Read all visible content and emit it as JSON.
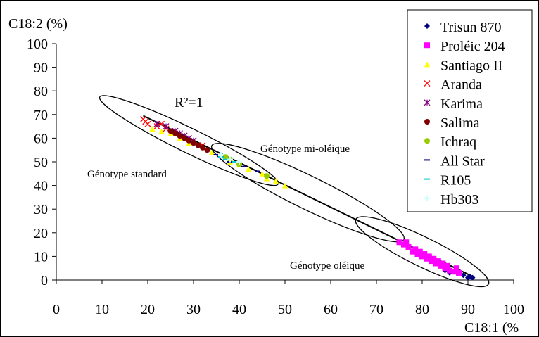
{
  "chart_data": {
    "type": "scatter",
    "title": "",
    "ylabel": "C18:2 (%)",
    "xlabel": "C18:1 (%",
    "xlim": [
      0,
      100
    ],
    "ylim": [
      0,
      100
    ],
    "x_ticks": [
      0,
      10,
      20,
      30,
      40,
      50,
      60,
      70,
      80,
      90,
      100
    ],
    "y_ticks": [
      0,
      10,
      20,
      30,
      40,
      50,
      60,
      70,
      80,
      90,
      100
    ],
    "grid": false,
    "legend_position": "top-right",
    "trendline": {
      "x": [
        19,
        91
      ],
      "y": [
        69.5,
        1.5
      ]
    },
    "annotations": [
      {
        "id": "r2",
        "text": "R²=1"
      },
      {
        "id": "standard",
        "text": "Génotype standard"
      },
      {
        "id": "mid",
        "text": "Génotype mi-oléique"
      },
      {
        "id": "oleic",
        "text": "Génotype oléique"
      }
    ],
    "series": [
      {
        "name": "Trisun 870",
        "marker": "diamond",
        "color": "#000080",
        "points": [
          [
            85,
            4
          ],
          [
            86,
            3
          ],
          [
            89,
            2
          ],
          [
            90,
            1
          ],
          [
            91,
            1
          ],
          [
            90.5,
            1.5
          ]
        ]
      },
      {
        "name": "Proléic 204",
        "marker": "square",
        "color": "#ff00ff",
        "points": [
          [
            75,
            16
          ],
          [
            76,
            15
          ],
          [
            77,
            14
          ],
          [
            78,
            12
          ],
          [
            79,
            11
          ],
          [
            80,
            10
          ],
          [
            81,
            9
          ],
          [
            82,
            8
          ],
          [
            83,
            7
          ],
          [
            84,
            6
          ],
          [
            85,
            5
          ],
          [
            86,
            4
          ],
          [
            87,
            3.5
          ],
          [
            88,
            3
          ],
          [
            79.5,
            12
          ],
          [
            80.5,
            11
          ],
          [
            82.5,
            9
          ],
          [
            84.5,
            7
          ],
          [
            76.5,
            16
          ],
          [
            78.5,
            13
          ],
          [
            81.5,
            10
          ],
          [
            83.5,
            8
          ],
          [
            85.5,
            6
          ],
          [
            87.5,
            5
          ]
        ]
      },
      {
        "name": "Santiago II",
        "marker": "triangle",
        "color": "#ffff00",
        "points": [
          [
            21,
            64
          ],
          [
            23,
            63
          ],
          [
            25,
            62
          ],
          [
            27,
            60
          ],
          [
            29,
            58
          ],
          [
            34,
            54
          ],
          [
            37,
            52
          ],
          [
            40,
            49
          ],
          [
            42,
            47
          ],
          [
            45,
            45
          ],
          [
            48,
            42
          ],
          [
            50,
            40
          ],
          [
            46,
            43
          ],
          [
            38,
            50
          ]
        ]
      },
      {
        "name": "Aranda",
        "marker": "x",
        "color": "#ff0000",
        "points": [
          [
            19,
            68
          ],
          [
            20,
            66
          ],
          [
            22,
            65
          ],
          [
            24,
            64
          ],
          [
            26,
            63
          ],
          [
            28,
            61
          ],
          [
            30,
            59
          ],
          [
            32,
            57
          ],
          [
            19.5,
            67
          ],
          [
            23,
            66
          ]
        ]
      },
      {
        "name": "Karima",
        "marker": "star",
        "color": "#800080",
        "points": [
          [
            22,
            66
          ],
          [
            24,
            65
          ],
          [
            26,
            63
          ],
          [
            28,
            61
          ],
          [
            30,
            59
          ],
          [
            27,
            62
          ],
          [
            29,
            60
          ]
        ]
      },
      {
        "name": "Salima",
        "marker": "circle",
        "color": "#800000",
        "points": [
          [
            25,
            63
          ],
          [
            26,
            62
          ],
          [
            27,
            61
          ],
          [
            28,
            60
          ],
          [
            29,
            59
          ],
          [
            30,
            58
          ],
          [
            31,
            57
          ],
          [
            32,
            56
          ],
          [
            33,
            55
          ]
        ]
      },
      {
        "name": "Ichraq",
        "marker": "circle",
        "color": "#99cc00",
        "points": [
          [
            37,
            52
          ],
          [
            38,
            51
          ],
          [
            40,
            49
          ],
          [
            46,
            44
          ]
        ]
      },
      {
        "name": "All Star",
        "marker": "dash",
        "color": "#000080",
        "points": [
          [
            35,
            53
          ],
          [
            36,
            52
          ],
          [
            38,
            50
          ],
          [
            41,
            48
          ],
          [
            44,
            46
          ]
        ]
      },
      {
        "name": "R105",
        "marker": "dash",
        "color": "#00cccc",
        "points": [
          [
            36,
            52
          ],
          [
            37,
            51
          ],
          [
            39,
            50
          ]
        ]
      },
      {
        "name": "Hb303",
        "marker": "plus",
        "color": "#ccffff",
        "points": [
          [
            36,
            53
          ],
          [
            38,
            51
          ],
          [
            40,
            50
          ]
        ]
      }
    ]
  }
}
